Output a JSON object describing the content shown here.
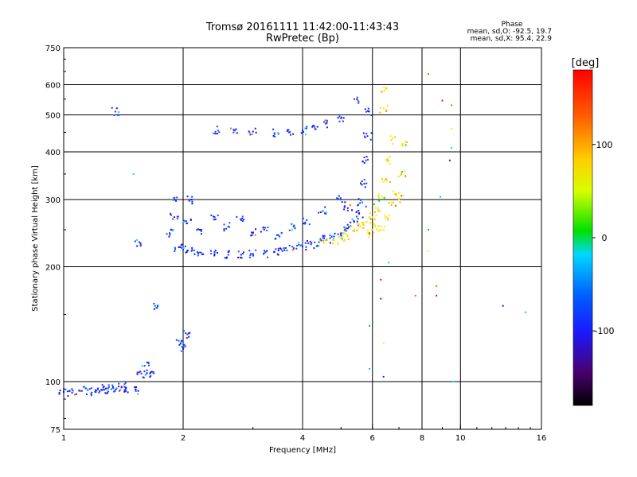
{
  "chart_data": {
    "type": "scatter",
    "title": "Tromsø 20161111 11:42:00-11:43:43",
    "subtitle": "RwPretec (Bp)",
    "phase_stats": {
      "heading": "Phase",
      "o_line": "mean, sd,O: -92.5, 19.7",
      "x_line": "mean, sd,X:  95.4, 22.9"
    },
    "xlabel": "Frequency [MHz]",
    "ylabel": "Stationary phase Virtual Height [km]",
    "x_scale": "log",
    "y_scale": "log",
    "xlim": [
      1,
      16
    ],
    "ylim": [
      75,
      750
    ],
    "x_ticks": [
      1,
      2,
      4,
      6,
      8,
      10,
      16
    ],
    "y_ticks": [
      75,
      100,
      200,
      300,
      400,
      500,
      600,
      750
    ],
    "x_gridlines": [
      2,
      4,
      6,
      8,
      10
    ],
    "y_gridlines": [
      100,
      200,
      300,
      400,
      500,
      600
    ],
    "grid": true,
    "colorbar": {
      "label": "[deg]",
      "min": -180,
      "max": 180,
      "ticks": [
        100,
        0,
        -100
      ],
      "placement": "right",
      "colormap": [
        "#000000",
        "#4a0070",
        "#1a1aff",
        "#0060ff",
        "#00d8ff",
        "#00e000",
        "#d8ff00",
        "#ffd000",
        "#ff6000",
        "#ff0000"
      ]
    },
    "series": [
      {
        "description_key": "O-mode trace",
        "points": [
          [
            1.0,
            94
          ],
          [
            1.05,
            93.5
          ],
          [
            1.1,
            94.5
          ],
          [
            1.15,
            95
          ],
          [
            1.2,
            94
          ],
          [
            1.22,
            96
          ],
          [
            1.25,
            95
          ],
          [
            1.28,
            96
          ],
          [
            1.32,
            95.5
          ],
          [
            1.36,
            96
          ],
          [
            1.4,
            97
          ],
          [
            1.43,
            95
          ],
          [
            1.95,
            225
          ],
          [
            2.0,
            222
          ],
          [
            2.1,
            220
          ],
          [
            2.2,
            218
          ],
          [
            2.4,
            216
          ],
          [
            2.6,
            215
          ],
          [
            2.8,
            215
          ],
          [
            3.0,
            216
          ],
          [
            3.2,
            217
          ],
          [
            3.4,
            219
          ],
          [
            3.6,
            221
          ],
          [
            3.8,
            223
          ],
          [
            4.0,
            226
          ],
          [
            4.2,
            229
          ],
          [
            4.4,
            232
          ],
          [
            4.6,
            236
          ],
          [
            4.8,
            240
          ],
          [
            5.0,
            245
          ],
          [
            5.2,
            252
          ],
          [
            5.4,
            262
          ],
          [
            5.55,
            275
          ],
          [
            5.65,
            295
          ],
          [
            5.72,
            330
          ],
          [
            5.78,
            380
          ],
          [
            5.83,
            440
          ],
          [
            5.88,
            510
          ],
          [
            2.45,
            455
          ],
          [
            2.7,
            455
          ],
          [
            3.0,
            452
          ],
          [
            3.4,
            448
          ],
          [
            3.7,
            450
          ],
          [
            4.0,
            455
          ],
          [
            4.3,
            460
          ],
          [
            4.6,
            475
          ],
          [
            5.0,
            490
          ],
          [
            5.4,
            550
          ],
          [
            1.85,
            245
          ],
          [
            1.9,
            270
          ],
          [
            1.9,
            300
          ],
          [
            2.05,
            260
          ],
          [
            2.1,
            300
          ],
          [
            2.2,
            250
          ],
          [
            2.4,
            270
          ],
          [
            2.6,
            255
          ],
          [
            2.8,
            265
          ],
          [
            3.0,
            245
          ],
          [
            3.2,
            250
          ],
          [
            3.5,
            240
          ],
          [
            3.8,
            255
          ],
          [
            4.1,
            265
          ],
          [
            4.5,
            280
          ],
          [
            5.0,
            300
          ],
          [
            5.2,
            285
          ],
          [
            1.57,
            105
          ],
          [
            1.62,
            105
          ],
          [
            1.65,
            105
          ],
          [
            1.6,
            110
          ],
          [
            1.95,
            128
          ],
          [
            2.0,
            122
          ],
          [
            2.05,
            133
          ],
          [
            1.55,
            232
          ],
          [
            1.35,
            510
          ],
          [
            1.52,
            94.5
          ],
          [
            1.7,
            158
          ]
        ]
      },
      {
        "description_key": "X-mode trace",
        "points": [
          [
            4.5,
            233
          ],
          [
            4.8,
            235
          ],
          [
            5.0,
            238
          ],
          [
            5.2,
            242
          ],
          [
            5.4,
            248
          ],
          [
            5.6,
            255
          ],
          [
            5.8,
            262
          ],
          [
            6.0,
            270
          ],
          [
            6.2,
            285
          ],
          [
            6.35,
            305
          ],
          [
            6.5,
            340
          ],
          [
            6.6,
            380
          ],
          [
            6.7,
            430
          ],
          [
            6.4,
            520
          ],
          [
            6.45,
            580
          ],
          [
            7.0,
            300
          ],
          [
            7.1,
            350
          ],
          [
            7.15,
            420
          ],
          [
            5.9,
            245
          ],
          [
            6.1,
            255
          ],
          [
            6.3,
            250
          ],
          [
            6.5,
            270
          ],
          [
            6.7,
            290
          ],
          [
            6.9,
            310
          ]
        ]
      },
      {
        "description_key": "scattered",
        "points": [
          [
            1.5,
            350
          ],
          [
            8.3,
            640
          ],
          [
            9.0,
            545
          ],
          [
            9.5,
            530
          ],
          [
            9.5,
            460
          ],
          [
            9.4,
            380
          ],
          [
            8.9,
            305
          ],
          [
            9.5,
            410
          ],
          [
            8.7,
            178
          ],
          [
            8.7,
            168
          ],
          [
            8.3,
            250
          ],
          [
            8.3,
            220
          ],
          [
            12.8,
            158
          ],
          [
            14.6,
            152
          ],
          [
            9.6,
            100
          ],
          [
            7.7,
            168
          ],
          [
            6.3,
            165
          ],
          [
            5.9,
            140
          ],
          [
            6.4,
            126
          ],
          [
            6.4,
            103
          ],
          [
            5.9,
            108
          ],
          [
            6.6,
            205
          ],
          [
            5.9,
            245
          ],
          [
            6.3,
            185
          ]
        ]
      }
    ]
  }
}
